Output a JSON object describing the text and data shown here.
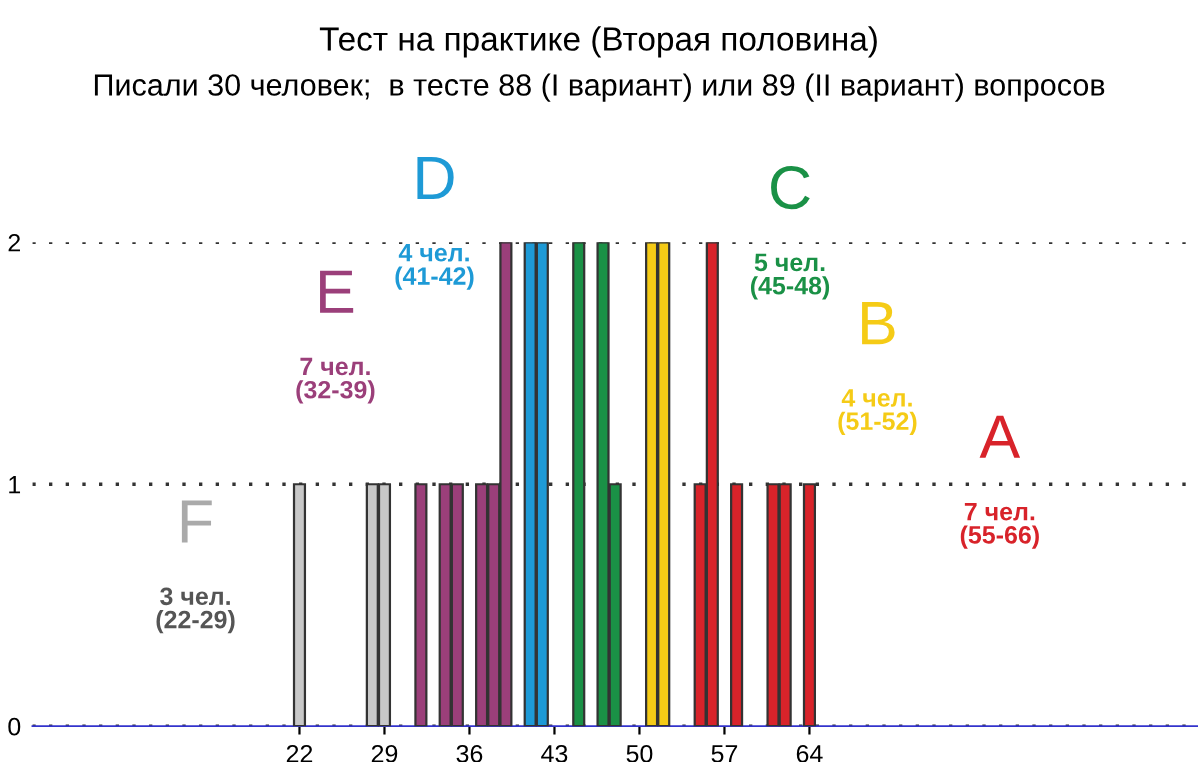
{
  "chart_data": {
    "type": "bar",
    "title": "Тест на практике (Вторая половина)",
    "subtitle": "Писали 30 человек;  в тесте 88 (I вариант) или 89 (II вариант) вопросов",
    "series": [
      {
        "name": "F",
        "color": "#c8c8c8",
        "x": [
          22,
          28,
          29
        ],
        "values": [
          1,
          1,
          1
        ]
      },
      {
        "name": "E",
        "color": "#9b3f7a",
        "x": [
          32,
          34,
          35,
          37,
          38,
          39
        ],
        "values": [
          1,
          1,
          1,
          1,
          1,
          2
        ]
      },
      {
        "name": "D",
        "color": "#1e9ad6",
        "x": [
          41,
          42
        ],
        "values": [
          2,
          2
        ]
      },
      {
        "name": "C",
        "color": "#1a9146",
        "x": [
          45,
          47,
          48
        ],
        "values": [
          2,
          2,
          1
        ]
      },
      {
        "name": "B",
        "color": "#f5cb16",
        "x": [
          51,
          52
        ],
        "values": [
          2,
          2
        ]
      },
      {
        "name": "A",
        "color": "#d8232a",
        "x": [
          55,
          56,
          58,
          61,
          62,
          64
        ],
        "values": [
          1,
          2,
          1,
          1,
          1,
          1
        ]
      }
    ],
    "annotations": [
      "3 чел.\n(22-29)",
      "7 чел.\n(32-39)",
      "4 чел.\n(41-42)",
      "5 чел.\n(45-48)",
      "4 чел.\n(51-52)",
      "7 чел.\n(55-66)"
    ],
    "xlim": [
      0,
      96
    ],
    "xticks": [
      22,
      29,
      36,
      43,
      50,
      57,
      64
    ],
    "ylim": [
      0,
      2
    ],
    "yticks": [
      0,
      1,
      2
    ],
    "grid": "y",
    "legend": false
  }
}
